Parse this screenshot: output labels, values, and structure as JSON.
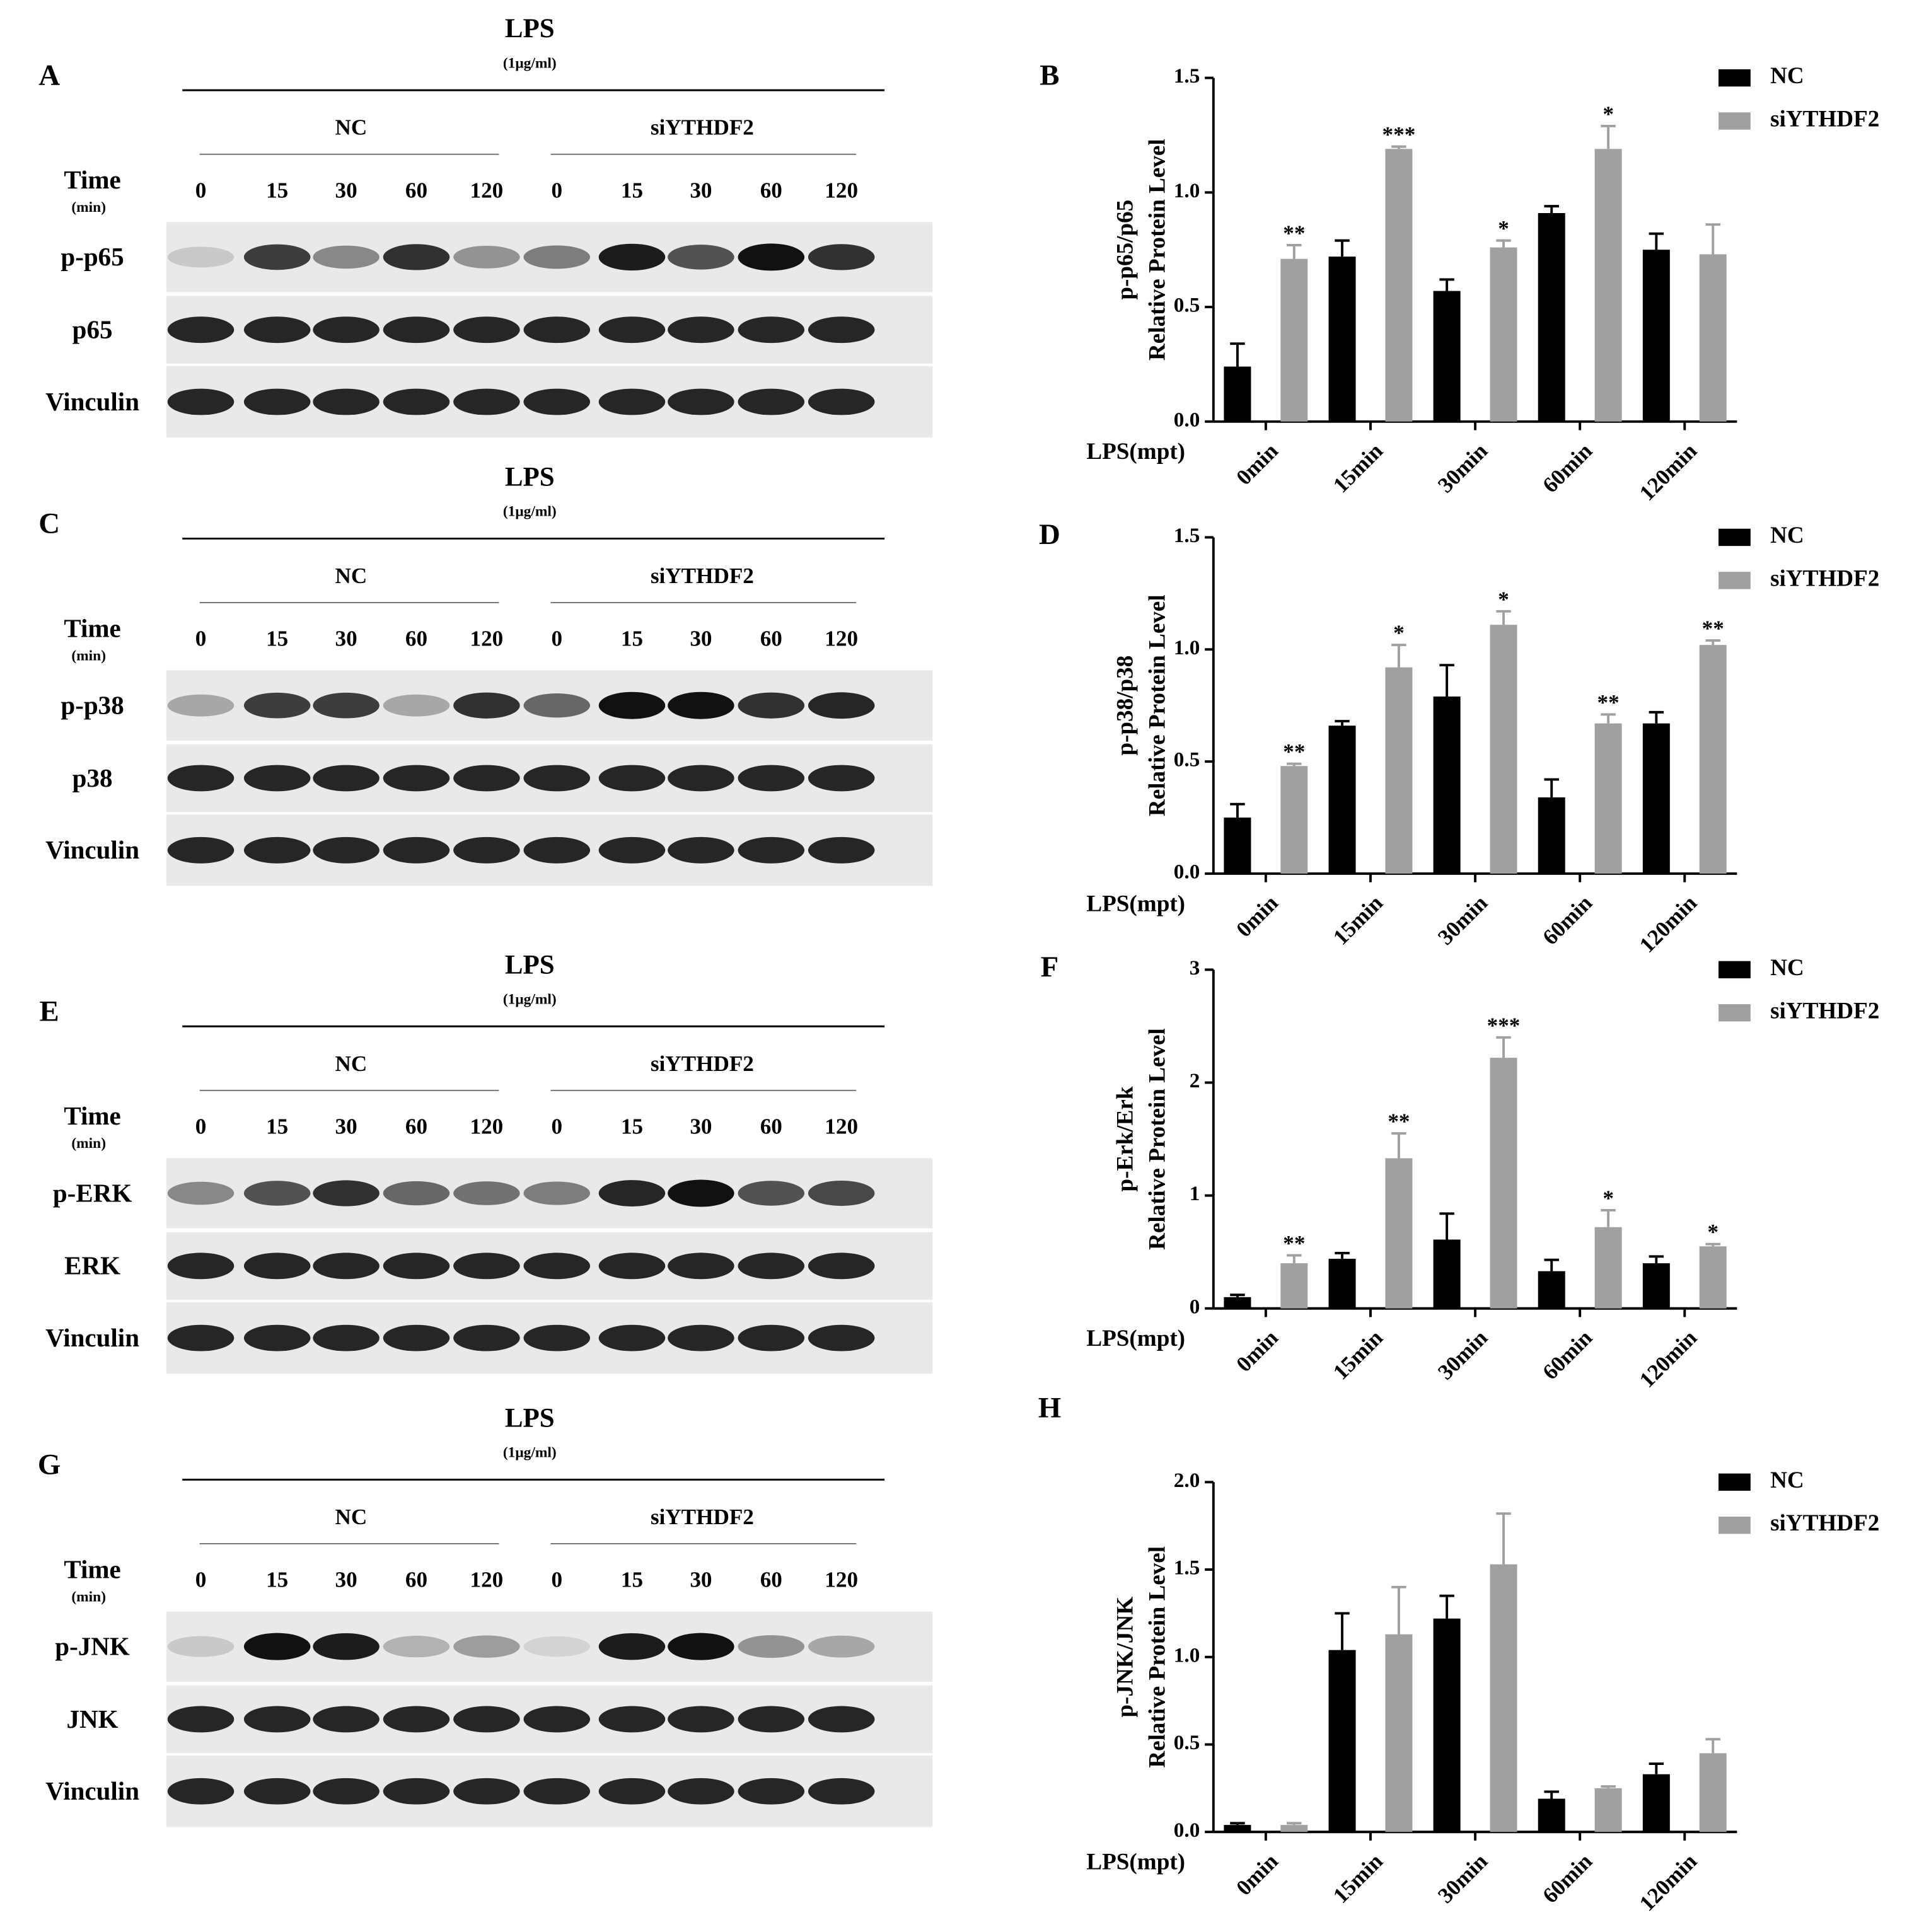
{
  "blots": [
    {
      "panel": "A",
      "treatment": "LPS",
      "dose": "(1μg/ml)",
      "groups": [
        "NC",
        "siYTHDF2"
      ],
      "time_label": "Time",
      "time_unit": "(min)",
      "times": [
        "0",
        "15",
        "30",
        "60",
        "120",
        "0",
        "15",
        "30",
        "60",
        "120"
      ],
      "rows": [
        "p-p65",
        "p65",
        "Vinculin"
      ]
    },
    {
      "panel": "C",
      "treatment": "LPS",
      "dose": "(1μg/ml)",
      "groups": [
        "NC",
        "siYTHDF2"
      ],
      "time_label": "Time",
      "time_unit": "(min)",
      "times": [
        "0",
        "15",
        "30",
        "60",
        "120",
        "0",
        "15",
        "30",
        "60",
        "120"
      ],
      "rows": [
        "p-p38",
        "p38",
        "Vinculin"
      ]
    },
    {
      "panel": "E",
      "treatment": "LPS",
      "dose": "(1μg/ml)",
      "groups": [
        "NC",
        "siYTHDF2"
      ],
      "time_label": "Time",
      "time_unit": "(min)",
      "times": [
        "0",
        "15",
        "30",
        "60",
        "120",
        "0",
        "15",
        "30",
        "60",
        "120"
      ],
      "rows": [
        "p-ERK",
        "ERK",
        "Vinculin"
      ]
    },
    {
      "panel": "G",
      "treatment": "LPS",
      "dose": "(1μg/ml)",
      "groups": [
        "NC",
        "siYTHDF2"
      ],
      "time_label": "Time",
      "time_unit": "(min)",
      "times": [
        "0",
        "15",
        "30",
        "60",
        "120",
        "0",
        "15",
        "30",
        "60",
        "120"
      ],
      "rows": [
        "p-JNK",
        "JNK",
        "Vinculin"
      ]
    }
  ],
  "chart_data": [
    {
      "type": "bar",
      "panel": "B",
      "y_label": [
        "p-p65/p65",
        "Relative Protein Level"
      ],
      "x_label": "LPS(mpt)",
      "categories": [
        "0min",
        "15min",
        "30min",
        "60min",
        "120min"
      ],
      "series": [
        {
          "name": "NC",
          "color": "#000000",
          "values": [
            0.24,
            0.72,
            0.57,
            0.91,
            0.75
          ],
          "errors": [
            0.1,
            0.07,
            0.05,
            0.03,
            0.07
          ]
        },
        {
          "name": "siYTHDF2",
          "color": "#a0a0a0",
          "values": [
            0.71,
            1.19,
            0.76,
            1.19,
            0.73
          ],
          "errors": [
            0.06,
            0.01,
            0.03,
            0.1,
            0.13
          ],
          "significance": [
            "**",
            "***",
            "*",
            "*",
            null
          ]
        }
      ],
      "ylim": [
        0,
        1.5
      ],
      "yticks": [
        {
          "value": 0,
          "label": "0.0"
        },
        0.5,
        {
          "value": 1,
          "label": "1.0"
        },
        1.5
      ]
    },
    {
      "type": "bar",
      "panel": "D",
      "y_label": [
        "p-p38/p38",
        "Relative Protein Level"
      ],
      "x_label": "LPS(mpt)",
      "categories": [
        "0min",
        "15min",
        "30min",
        "60min",
        "120min"
      ],
      "series": [
        {
          "name": "NC",
          "color": "#000000",
          "values": [
            0.25,
            0.66,
            0.79,
            0.34,
            0.67
          ],
          "errors": [
            0.06,
            0.02,
            0.14,
            0.08,
            0.05
          ]
        },
        {
          "name": "siYTHDF2",
          "color": "#a0a0a0",
          "values": [
            0.48,
            0.92,
            1.11,
            0.67,
            1.02
          ],
          "errors": [
            0.01,
            0.1,
            0.06,
            0.04,
            0.02
          ],
          "significance": [
            "**",
            "*",
            "*",
            "**",
            "**"
          ]
        }
      ],
      "ylim": [
        0,
        1.5
      ],
      "yticks": [
        {
          "value": 0,
          "label": "0.0"
        },
        0.5,
        {
          "value": 1,
          "label": "1.0"
        },
        1.5
      ]
    },
    {
      "type": "bar",
      "panel": "F",
      "y_label": [
        "p-Erk/Erk",
        "Relative Protein Level"
      ],
      "x_label": "LPS(mpt)",
      "categories": [
        "0min",
        "15min",
        "30min",
        "60min",
        "120min"
      ],
      "series": [
        {
          "name": "NC",
          "color": "#000000",
          "values": [
            0.1,
            0.44,
            0.61,
            0.33,
            0.4
          ],
          "errors": [
            0.02,
            0.05,
            0.23,
            0.1,
            0.06
          ]
        },
        {
          "name": "siYTHDF2",
          "color": "#a0a0a0",
          "values": [
            0.4,
            1.33,
            2.22,
            0.72,
            0.55
          ],
          "errors": [
            0.07,
            0.22,
            0.18,
            0.15,
            0.02
          ],
          "significance": [
            "**",
            "**",
            "***",
            "*",
            "*"
          ]
        }
      ],
      "ylim": [
        0,
        3
      ],
      "yticks": [
        0,
        1,
        2,
        3
      ]
    },
    {
      "type": "bar",
      "panel": "H",
      "y_label": [
        "p-JNK/JNK",
        "Relative Protein Level"
      ],
      "x_label": "LPS(mpt)",
      "categories": [
        "0min",
        "15min",
        "30min",
        "60min",
        "120min"
      ],
      "series": [
        {
          "name": "NC",
          "color": "#000000",
          "values": [
            0.04,
            1.04,
            1.22,
            0.19,
            0.33
          ],
          "errors": [
            0.01,
            0.21,
            0.13,
            0.04,
            0.06
          ]
        },
        {
          "name": "siYTHDF2",
          "color": "#a0a0a0",
          "values": [
            0.04,
            1.13,
            1.53,
            0.25,
            0.45
          ],
          "errors": [
            0.01,
            0.27,
            0.29,
            0.01,
            0.08
          ]
        }
      ],
      "ylim": [
        0,
        2
      ],
      "yticks": [
        {
          "value": 0,
          "label": "0.0"
        },
        0.5,
        {
          "value": 1,
          "label": "1.0"
        },
        1.5,
        {
          "value": 2,
          "label": "2.0"
        }
      ]
    }
  ]
}
